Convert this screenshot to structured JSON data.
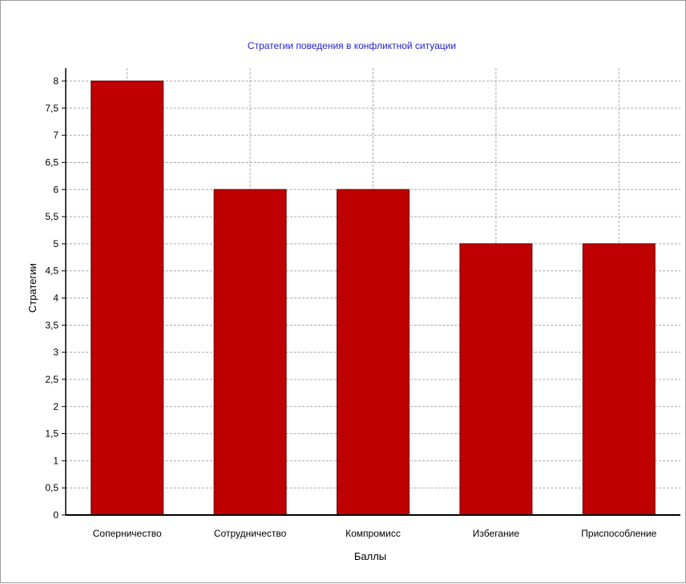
{
  "chart_data": {
    "type": "bar",
    "title": "Стратегии поведения в конфликтной ситуации",
    "xlabel": "Баллы",
    "ylabel": "Стратегии",
    "categories": [
      "Соперничество",
      "Сотрудничество",
      "Компромисс",
      "Избегание",
      "Приспособление"
    ],
    "values": [
      8,
      6,
      6,
      5,
      5
    ],
    "ylim": [
      0,
      8
    ],
    "yticks": [
      "0",
      "0,5",
      "1",
      "1,5",
      "2",
      "2,5",
      "3",
      "3,5",
      "4",
      "4,5",
      "5",
      "5,5",
      "6",
      "6,5",
      "7",
      "7,5",
      "8"
    ],
    "grid": true,
    "legend": "none",
    "colors": {
      "bar": "#bf0000",
      "bar_edge": "#6a0000",
      "title": "#2222cc",
      "grid": "#a8a8a8",
      "axis": "#000000"
    }
  }
}
